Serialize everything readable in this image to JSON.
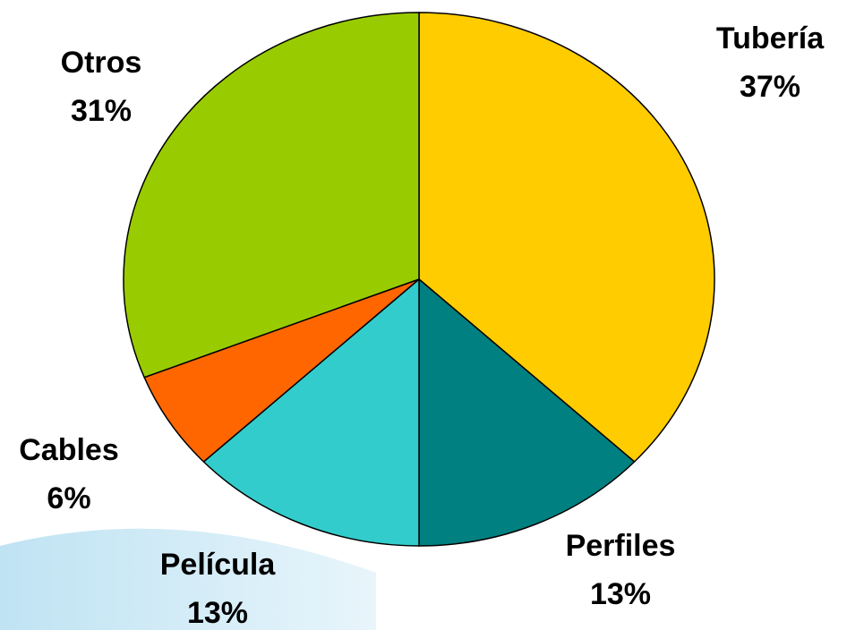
{
  "chart_data": {
    "type": "pie",
    "categories": [
      "Tubería",
      "Perfiles",
      "Película",
      "Cables",
      "Otros"
    ],
    "values": [
      37,
      13,
      13,
      6,
      31
    ],
    "value_labels": [
      "37%",
      "13%",
      "13%",
      "6%",
      "31%"
    ],
    "colors": [
      "#ffcc00",
      "#008080",
      "#33cccc",
      "#ff6600",
      "#99cc00"
    ]
  }
}
